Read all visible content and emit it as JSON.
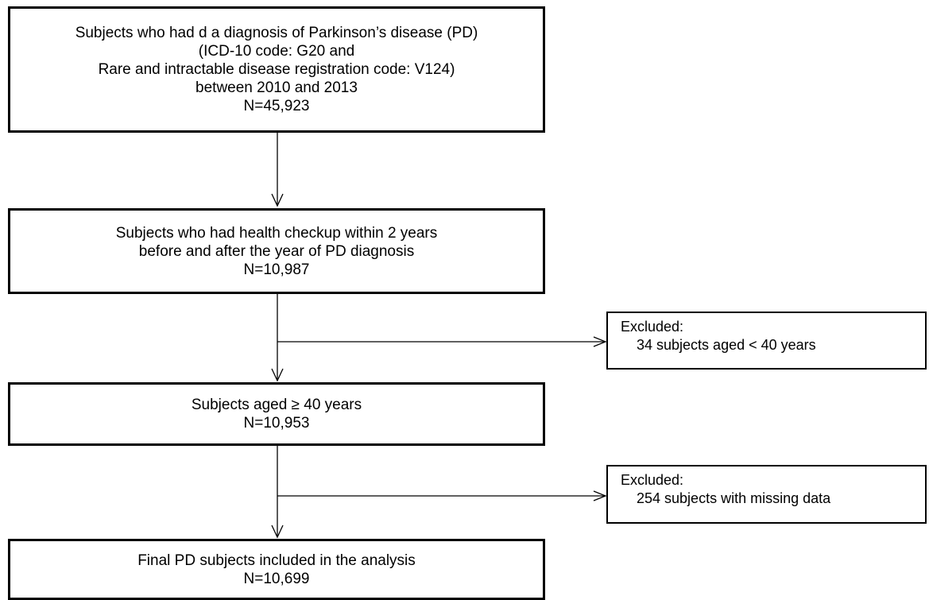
{
  "flowchart": {
    "boxes": [
      {
        "id": "pd-diagnosis",
        "lines": [
          "Subjects who had d a diagnosis of Parkinson’s disease (PD)",
          "(ICD-10 code: G20 and",
          "Rare and intractable disease registration code: V124)",
          "between 2010 and 2013",
          "N=45,923"
        ]
      },
      {
        "id": "health-checkup",
        "lines": [
          "Subjects who had health checkup within 2 years",
          "before and after the year of PD diagnosis",
          "N=10,987"
        ]
      },
      {
        "id": "aged-40",
        "lines": [
          "Subjects aged ≥ 40 years",
          "N=10,953"
        ]
      },
      {
        "id": "final",
        "lines": [
          "Final PD subjects included in the analysis",
          "N=10,699"
        ]
      }
    ],
    "exclusions": [
      {
        "id": "exclusion-age",
        "heading": "Excluded:",
        "detail": "34 subjects aged < 40 years"
      },
      {
        "id": "exclusion-missing",
        "heading": "Excluded:",
        "detail": "254  subjects with missing data"
      }
    ]
  }
}
